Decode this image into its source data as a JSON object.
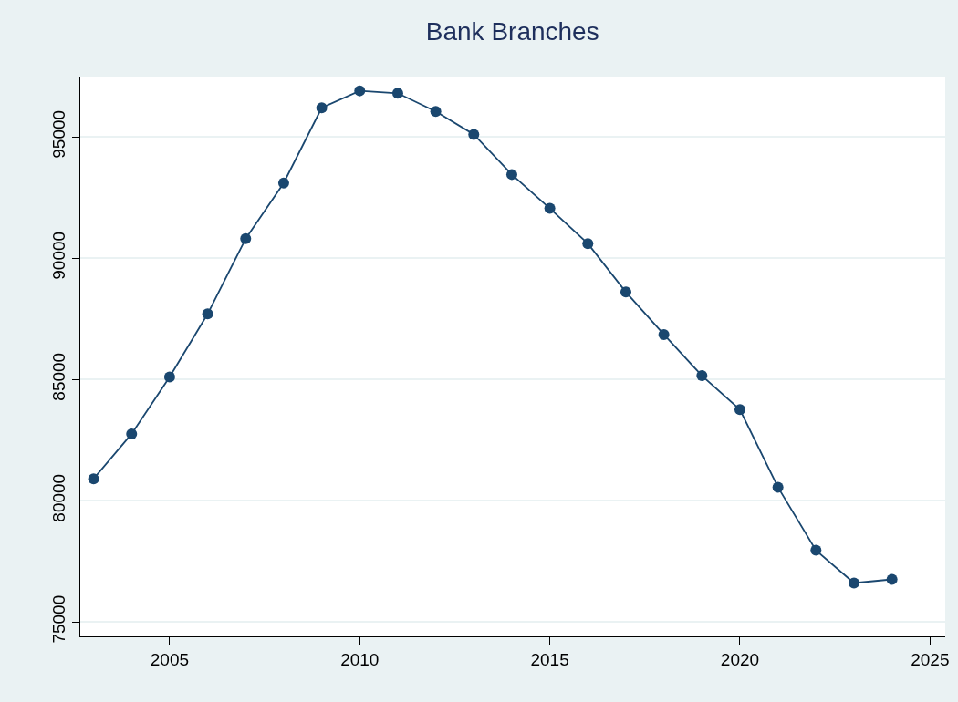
{
  "chart_data": {
    "type": "line",
    "title": "Bank Branches",
    "x": [
      2003,
      2004,
      2005,
      2006,
      2007,
      2008,
      2009,
      2010,
      2011,
      2012,
      2013,
      2014,
      2015,
      2016,
      2017,
      2018,
      2019,
      2020,
      2021,
      2022,
      2023,
      2024
    ],
    "series": [
      {
        "color": "#1a476f",
        "values": [
          80900,
          82750,
          85100,
          87700,
          90800,
          93100,
          96200,
          96900,
          96800,
          96050,
          95100,
          93450,
          92050,
          90600,
          88600,
          86850,
          85150,
          83750,
          80550,
          77950,
          76600,
          76750
        ]
      }
    ],
    "xlim": [
      2002.65,
      2025.4
    ],
    "xticks": [
      2005,
      2010,
      2015,
      2020,
      2025
    ],
    "ylim": [
      74400,
      97450
    ],
    "yticks": [
      75000,
      80000,
      85000,
      90000,
      95000
    ],
    "grid": "y",
    "legend": false,
    "marker": "circle",
    "line_style": "solid"
  }
}
